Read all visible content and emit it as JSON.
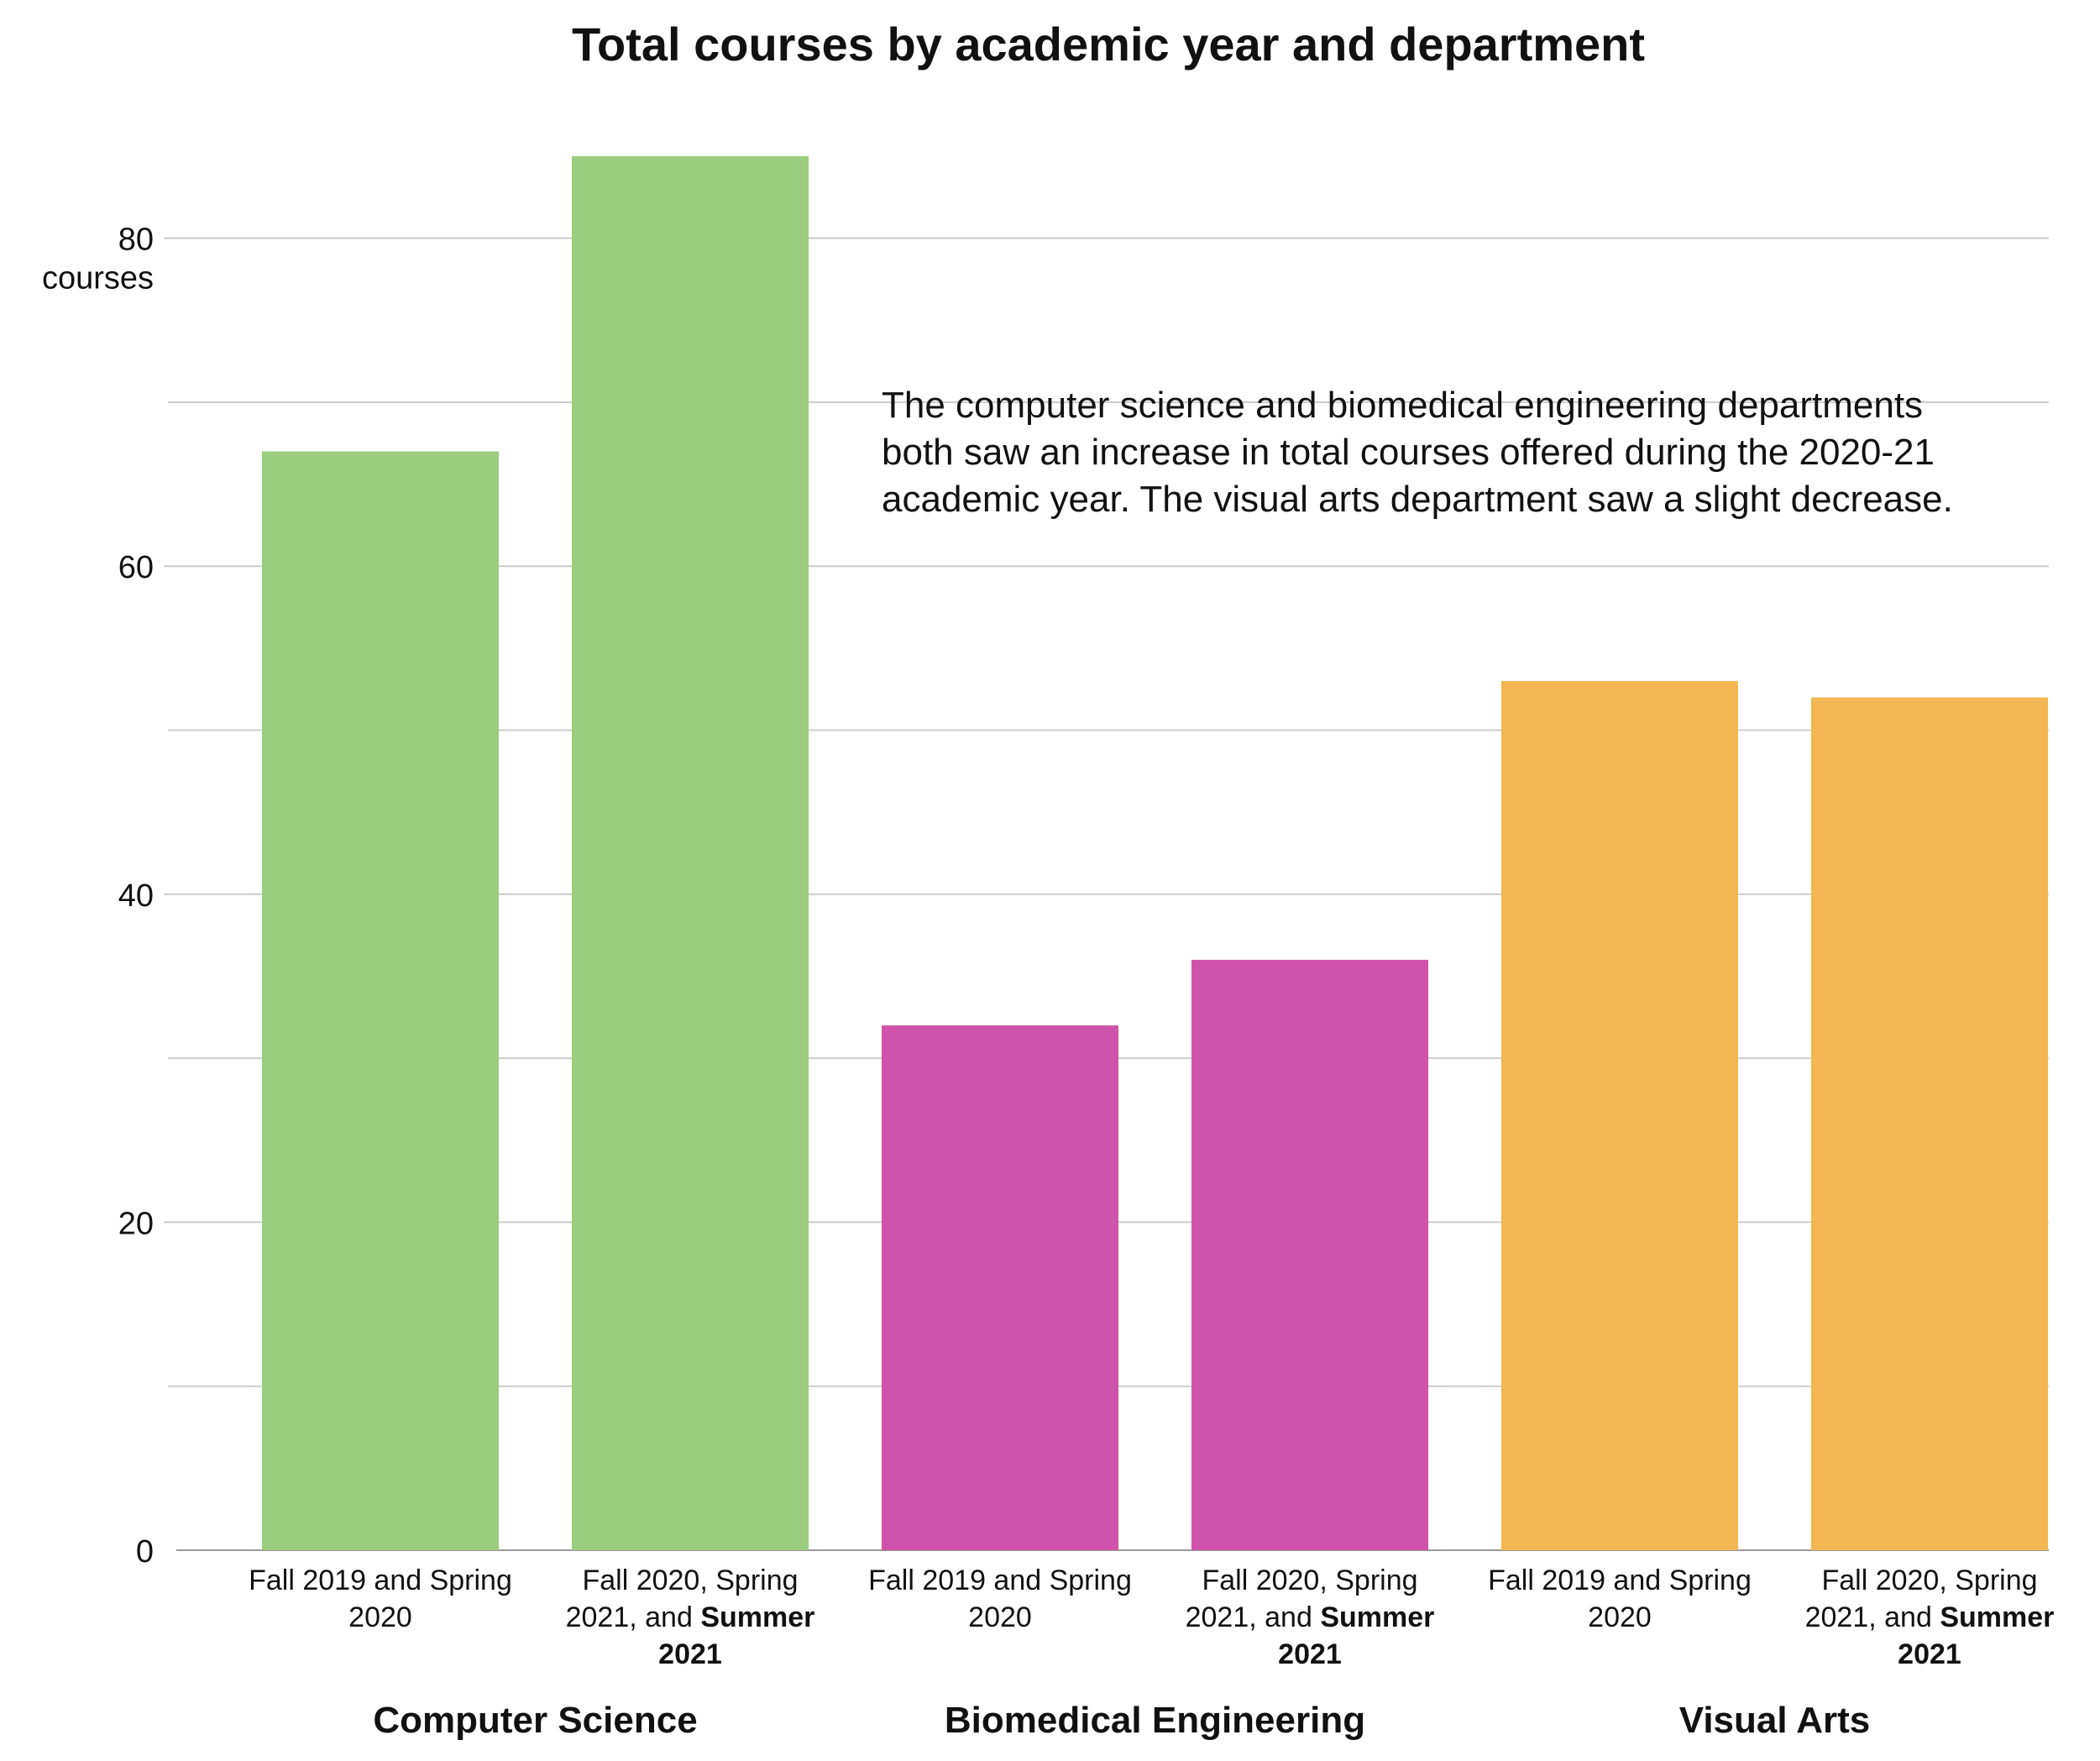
{
  "chart_data": {
    "type": "bar",
    "title": "Total courses by academic year and department",
    "xlabel": "",
    "ylabel": "",
    "y_unit_label": "courses",
    "ylim": [
      0,
      85
    ],
    "yticks": [
      0,
      20,
      40,
      60,
      80
    ],
    "grid": true,
    "groups": [
      {
        "name": "Computer Science",
        "color": "#9ccd7e",
        "bars": [
          {
            "label_lines": [
              [
                {
                  "t": "Fall 2019 and Spring",
                  "b": false
                }
              ],
              [
                {
                  "t": "2020",
                  "b": false
                }
              ]
            ],
            "value": 67
          },
          {
            "label_lines": [
              [
                {
                  "t": "Fall 2020, Spring",
                  "b": false
                }
              ],
              [
                {
                  "t": "2021, and ",
                  "b": false
                },
                {
                  "t": "Summer",
                  "b": true
                }
              ],
              [
                {
                  "t": "2021",
                  "b": true
                }
              ]
            ],
            "value": 85
          }
        ]
      },
      {
        "name": "Biomedical Engineering",
        "color": "#cf53ab",
        "bars": [
          {
            "label_lines": [
              [
                {
                  "t": "Fall 2019 and Spring",
                  "b": false
                }
              ],
              [
                {
                  "t": "2020",
                  "b": false
                }
              ]
            ],
            "value": 32
          },
          {
            "label_lines": [
              [
                {
                  "t": "Fall 2020, Spring",
                  "b": false
                }
              ],
              [
                {
                  "t": "2021, and ",
                  "b": false
                },
                {
                  "t": "Summer",
                  "b": true
                }
              ],
              [
                {
                  "t": "2021",
                  "b": true
                }
              ]
            ],
            "value": 36
          }
        ]
      },
      {
        "name": "Visual Arts",
        "color": "#f2b752",
        "bars": [
          {
            "label_lines": [
              [
                {
                  "t": "Fall 2019 and Spring",
                  "b": false
                }
              ],
              [
                {
                  "t": "2020",
                  "b": false
                }
              ]
            ],
            "value": 53
          },
          {
            "label_lines": [
              [
                {
                  "t": "Fall 2020, Spring",
                  "b": false
                }
              ],
              [
                {
                  "t": "2021, and ",
                  "b": false
                },
                {
                  "t": "Summer",
                  "b": true
                }
              ],
              [
                {
                  "t": "2021",
                  "b": true
                }
              ]
            ],
            "value": 52
          }
        ]
      }
    ],
    "annotation": [
      "The computer science and biomedical engineering departments",
      "both saw an increase in total courses offered during the 2020-21",
      "academic year. The visual arts department saw a slight decrease."
    ]
  }
}
